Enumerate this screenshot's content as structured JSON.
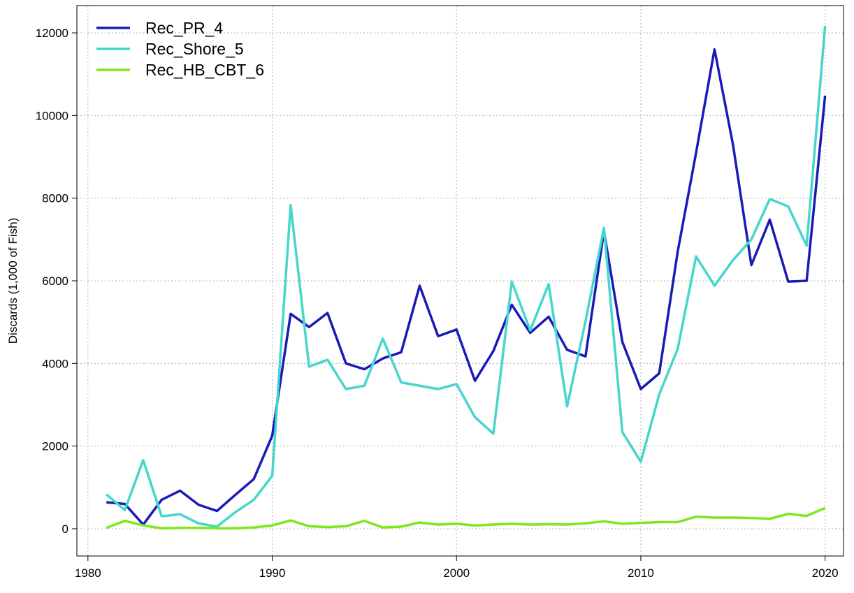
{
  "chart_data": {
    "type": "line",
    "y_label": "Discards (1,000 of Fish)",
    "x": [
      1981,
      1982,
      1983,
      1984,
      1985,
      1986,
      1987,
      1988,
      1989,
      1990,
      1991,
      1992,
      1993,
      1994,
      1995,
      1996,
      1997,
      1998,
      1999,
      2000,
      2001,
      2002,
      2003,
      2004,
      2005,
      2006,
      2007,
      2008,
      2009,
      2010,
      2011,
      2012,
      2013,
      2014,
      2015,
      2016,
      2017,
      2018,
      2019,
      2020
    ],
    "series": [
      {
        "name": "Rec_PR_4",
        "color": "#1a1ab8",
        "values": [
          640,
          600,
          100,
          700,
          920,
          580,
          430,
          820,
          1200,
          2250,
          5200,
          4880,
          5220,
          4000,
          3860,
          4120,
          4270,
          5880,
          4660,
          4820,
          3580,
          4300,
          5420,
          4740,
          5130,
          4330,
          4170,
          7200,
          4520,
          3380,
          3760,
          6700,
          9100,
          11600,
          9300,
          6380,
          7480,
          5980,
          6000,
          10480
        ]
      },
      {
        "name": "Rec_Shore_5",
        "color": "#45d6cc",
        "values": [
          830,
          450,
          1660,
          300,
          350,
          130,
          50,
          400,
          700,
          1280,
          7830,
          3920,
          4090,
          3380,
          3460,
          4600,
          3540,
          3460,
          3380,
          3500,
          2700,
          2300,
          5980,
          4800,
          5920,
          2960,
          5020,
          7280,
          2340,
          1620,
          3250,
          4350,
          6590,
          5880,
          6500,
          7000,
          7980,
          7800,
          6850,
          12170
        ]
      },
      {
        "name": "Rec_HB_CBT_6",
        "color": "#7de81a",
        "values": [
          20,
          190,
          80,
          10,
          20,
          20,
          10,
          10,
          30,
          80,
          200,
          60,
          40,
          60,
          190,
          30,
          50,
          150,
          100,
          120,
          80,
          100,
          120,
          100,
          110,
          100,
          130,
          180,
          120,
          140,
          160,
          160,
          290,
          270,
          270,
          260,
          240,
          360,
          310,
          500
        ]
      }
    ],
    "xlim": [
      1979.4,
      2021
    ],
    "ylim": [
      -660,
      12660
    ],
    "xticks": [
      1980,
      1990,
      2000,
      2010,
      2020
    ],
    "yticks": [
      0,
      2000,
      4000,
      6000,
      8000,
      10000,
      12000
    ],
    "grid": true,
    "legend": "top-left"
  }
}
